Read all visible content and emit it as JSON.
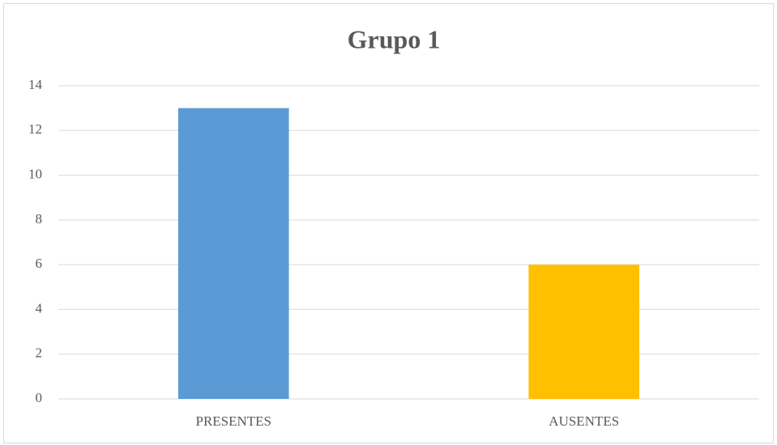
{
  "chart_data": {
    "type": "bar",
    "title": "Grupo 1",
    "categories": [
      "PRESENTES",
      "AUSENTES"
    ],
    "values": [
      13,
      6
    ],
    "colors": [
      "#5b9bd5",
      "#ffc000"
    ],
    "ylim": [
      0,
      14
    ],
    "yticks": [
      0,
      2,
      4,
      6,
      8,
      10,
      12,
      14
    ],
    "grid": true
  }
}
